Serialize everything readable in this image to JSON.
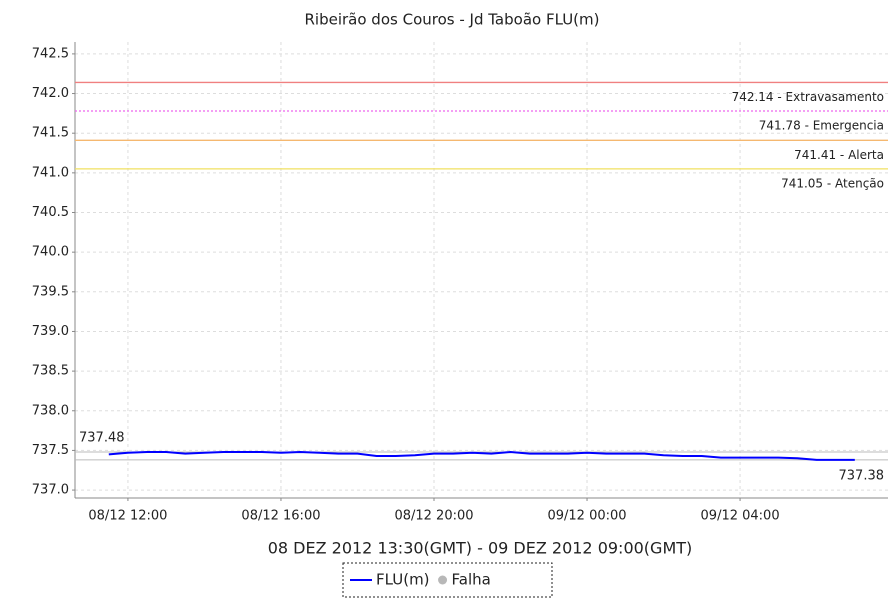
{
  "chart_data": {
    "type": "line",
    "title": "Ribeirão dos Couros - Jd Taboão FLU(m)",
    "subtitle": "08 DEZ 2012 13:30(GMT) - 09 DEZ 2012 09:00(GMT)",
    "x": [
      "2012-12-08T11:30",
      "2012-12-08T12:00",
      "2012-12-08T12:30",
      "2012-12-08T13:00",
      "2012-12-08T13:30",
      "2012-12-08T14:00",
      "2012-12-08T14:30",
      "2012-12-08T15:00",
      "2012-12-08T15:30",
      "2012-12-08T16:00",
      "2012-12-08T16:30",
      "2012-12-08T17:00",
      "2012-12-08T17:30",
      "2012-12-08T18:00",
      "2012-12-08T18:30",
      "2012-12-08T19:00",
      "2012-12-08T19:30",
      "2012-12-08T20:00",
      "2012-12-08T20:30",
      "2012-12-08T21:00",
      "2012-12-08T21:30",
      "2012-12-08T22:00",
      "2012-12-08T22:30",
      "2012-12-08T23:00",
      "2012-12-08T23:30",
      "2012-12-09T00:00",
      "2012-12-09T00:30",
      "2012-12-09T01:00",
      "2012-12-09T01:30",
      "2012-12-09T02:00",
      "2012-12-09T02:30",
      "2012-12-09T03:00",
      "2012-12-09T03:30",
      "2012-12-09T04:00",
      "2012-12-09T04:30",
      "2012-12-09T05:00",
      "2012-12-09T05:30",
      "2012-12-09T06:00",
      "2012-12-09T06:30",
      "2012-12-09T07:00"
    ],
    "series": [
      {
        "name": "FLU(m)",
        "color": "#0000ff",
        "values": [
          737.45,
          737.47,
          737.48,
          737.48,
          737.46,
          737.47,
          737.48,
          737.48,
          737.48,
          737.47,
          737.48,
          737.47,
          737.46,
          737.46,
          737.43,
          737.43,
          737.44,
          737.46,
          737.46,
          737.47,
          737.46,
          737.48,
          737.46,
          737.46,
          737.46,
          737.47,
          737.46,
          737.46,
          737.46,
          737.44,
          737.43,
          737.43,
          737.41,
          737.41,
          737.41,
          737.41,
          737.4,
          737.38,
          737.38,
          737.38
        ]
      }
    ],
    "legend_extra": [
      {
        "name": "Falha",
        "color": "#b8b8b8"
      }
    ],
    "xlim": [
      "2012-12-08T10:37",
      "2012-12-09T07:52"
    ],
    "xticks": [
      {
        "value": "2012-12-08T12:00",
        "label": "08/12 12:00"
      },
      {
        "value": "2012-12-08T16:00",
        "label": "08/12 16:00"
      },
      {
        "value": "2012-12-08T20:00",
        "label": "08/12 20:00"
      },
      {
        "value": "2012-12-09T00:00",
        "label": "09/12 00:00"
      },
      {
        "value": "2012-12-09T04:00",
        "label": "09/12 04:00"
      }
    ],
    "ylim": [
      736.9,
      742.65
    ],
    "yticks": [
      {
        "value": 737,
        "label": "737.0"
      },
      737.5,
      {
        "value": 738,
        "label": "738.0"
      },
      738.5,
      {
        "value": 739,
        "label": "739.0"
      },
      739.5,
      {
        "value": 740,
        "label": "740.0"
      },
      740.5,
      {
        "value": 741,
        "label": "741.0"
      },
      741.5,
      {
        "value": 742,
        "label": "742.0"
      },
      742.5
    ],
    "grid": true,
    "thresholds": [
      {
        "value": 742.14,
        "label": "742.14 - Extravasamento",
        "color": "#f08080",
        "dashed": false
      },
      {
        "value": 741.78,
        "label": "741.78 - Emergencia",
        "color": "#ee66ee",
        "dashed": true
      },
      {
        "value": 741.41,
        "label": "741.41 - Alerta",
        "color": "#f5b870",
        "dashed": false
      },
      {
        "value": 741.05,
        "label": "741.05 - Atenção",
        "color": "#f0e060",
        "dashed": false
      }
    ],
    "reference_lines": [
      {
        "value": 737.48,
        "side": "left"
      },
      {
        "value": 737.38,
        "side": "right"
      }
    ]
  }
}
